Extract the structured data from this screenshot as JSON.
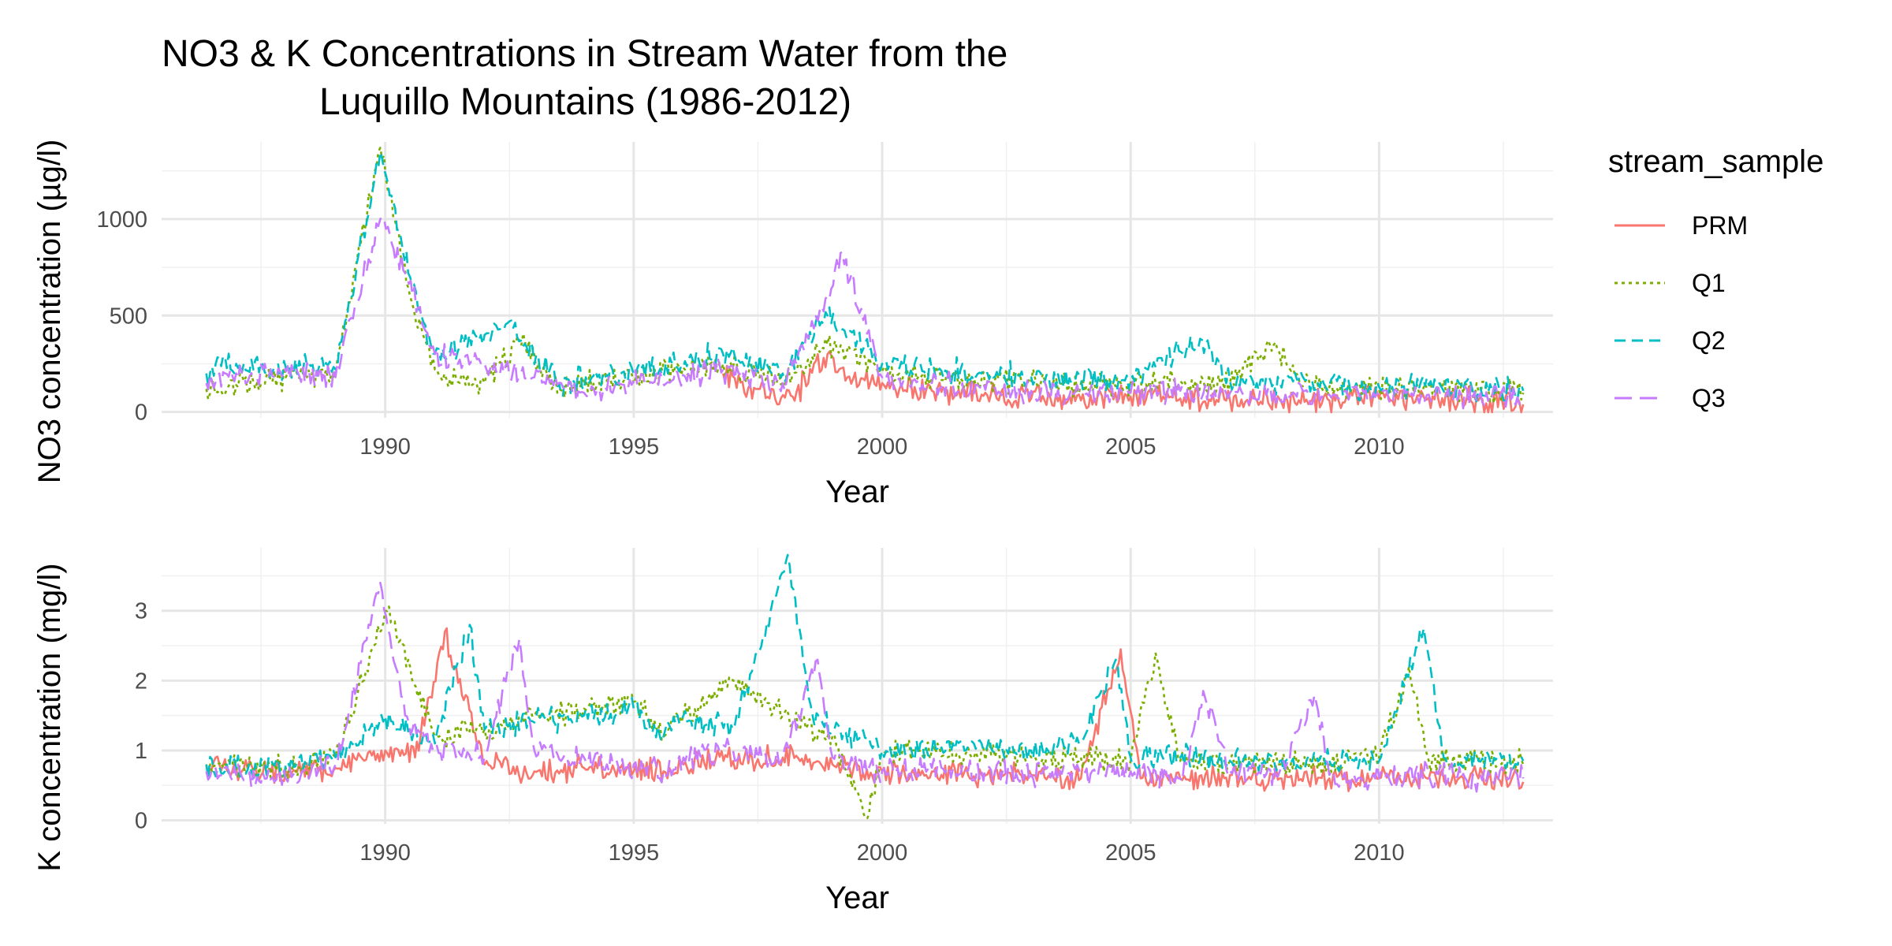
{
  "title_lines": [
    "NO3 & K Concentrations in Stream Water from the",
    "Luquillo Mountains (1986-2012)"
  ],
  "legend": {
    "title": "stream_sample",
    "placement": "right",
    "entries": [
      {
        "name": "PRM",
        "color": "#F8766D",
        "dash": "solid"
      },
      {
        "name": "Q1",
        "color": "#7CAE00",
        "dash": "dotted"
      },
      {
        "name": "Q2",
        "color": "#00BFC4",
        "dash": "dashed"
      },
      {
        "name": "Q3",
        "color": "#C77CFF",
        "dash": "longdash"
      }
    ]
  },
  "chart_data": [
    {
      "type": "line",
      "xlabel": "Year",
      "ylabel": "NO3 concentration (µg/l)",
      "xlim": [
        1985.5,
        2013.5
      ],
      "ylim": [
        -30,
        1400
      ],
      "x_ticks": [
        1990,
        1995,
        2000,
        2005,
        2010
      ],
      "y_ticks": [
        0,
        500,
        1000
      ],
      "grid": true,
      "gaps": [
        [
          1995.0,
          1996.8
        ]
      ],
      "series": [
        {
          "name": "PRM",
          "x": [
            1996.8,
            1997.5,
            1998.2,
            1998.9,
            1999.3,
            2000,
            2001,
            2002,
            2003,
            2004,
            2005,
            2006,
            2007,
            2008,
            2009,
            2010,
            2011,
            2012,
            2012.9
          ],
          "values": [
            200,
            120,
            80,
            300,
            180,
            150,
            110,
            90,
            70,
            60,
            80,
            70,
            60,
            65,
            60,
            70,
            75,
            60,
            40
          ]
        },
        {
          "name": "Q1",
          "x": [
            1986.4,
            1987,
            1988,
            1989,
            1989.9,
            1990.5,
            1991,
            1992,
            1992.7,
            1993.5,
            1996.8,
            1998,
            1998.9,
            2000,
            2001,
            2002,
            2003,
            2004,
            2005,
            2006,
            2007,
            2007.8,
            2008.5,
            2009,
            2010,
            2011,
            2012,
            2012.9
          ],
          "values": [
            120,
            140,
            180,
            200,
            1370,
            600,
            220,
            150,
            370,
            120,
            250,
            150,
            350,
            210,
            180,
            170,
            160,
            150,
            150,
            160,
            150,
            350,
            140,
            130,
            120,
            130,
            110,
            100
          ]
        },
        {
          "name": "Q2",
          "x": [
            1986.4,
            1987,
            1988,
            1989,
            1989.9,
            1990.5,
            1991,
            1992,
            1992.5,
            1993.5,
            1996.8,
            1998,
            1998.9,
            2000,
            2001,
            2002,
            2003,
            2004,
            2005,
            2006.4,
            2007,
            2008,
            2009,
            2010,
            2011,
            2012,
            2012.9
          ],
          "values": [
            200,
            250,
            230,
            220,
            1350,
            700,
            300,
            400,
            470,
            150,
            300,
            200,
            500,
            250,
            220,
            200,
            180,
            170,
            160,
            380,
            160,
            150,
            140,
            130,
            140,
            120,
            110
          ]
        },
        {
          "name": "Q3",
          "x": [
            1986.4,
            1987,
            1988,
            1989,
            1989.9,
            1990.4,
            1991,
            1992,
            1993,
            1994,
            1996.8,
            1998,
            1998.9,
            1999.2,
            2000,
            2001,
            2002,
            2003,
            2004,
            2005,
            2006,
            2007,
            2008,
            2009,
            2010,
            2011,
            2012,
            2012.9
          ],
          "values": [
            150,
            200,
            210,
            180,
            1000,
            720,
            300,
            250,
            180,
            100,
            220,
            150,
            600,
            830,
            180,
            150,
            120,
            110,
            100,
            100,
            110,
            100,
            90,
            90,
            80,
            90,
            80,
            70
          ]
        }
      ]
    },
    {
      "type": "line",
      "xlabel": "Year",
      "ylabel": "K concentration (mg/l)",
      "xlim": [
        1985.5,
        2013.5
      ],
      "ylim": [
        -0.05,
        3.9
      ],
      "x_ticks": [
        1990,
        1995,
        2000,
        2005,
        2010
      ],
      "y_ticks": [
        0,
        1,
        2,
        3
      ],
      "grid": true,
      "gaps": [
        [
          1995.6,
          1996.0
        ]
      ],
      "series": [
        {
          "name": "PRM",
          "x": [
            1986.4,
            1987,
            1988,
            1989,
            1990,
            1990.6,
            1991.2,
            1992,
            1993,
            1994,
            1995,
            1995.6,
            1996,
            1997,
            1998,
            1999,
            2000,
            2001,
            2002,
            2003,
            2004,
            2004.8,
            2005.2,
            2006,
            2007,
            2008,
            2009,
            2010,
            2011,
            2012,
            2012.9
          ],
          "values": [
            0.8,
            0.75,
            0.7,
            0.75,
            1.0,
            0.9,
            2.7,
            0.8,
            0.7,
            0.75,
            0.7,
            0.7,
            0.8,
            0.85,
            0.9,
            0.8,
            0.7,
            0.7,
            0.65,
            0.65,
            0.6,
            2.45,
            0.6,
            0.6,
            0.65,
            0.6,
            0.6,
            0.6,
            0.6,
            0.6,
            0.55
          ]
        },
        {
          "name": "Q1",
          "x": [
            1986.4,
            1987,
            1988,
            1989,
            1990,
            1990.5,
            1991,
            1992,
            1993,
            1994,
            1995,
            1995.6,
            1996,
            1997,
            1998,
            1999,
            1999.7,
            2000,
            2001,
            2002,
            2003,
            2004,
            2005,
            2005.5,
            2006,
            2007,
            2008,
            2009,
            2010,
            2010.6,
            2011,
            2012,
            2012.9
          ],
          "values": [
            0.8,
            0.8,
            0.75,
            0.9,
            3.0,
            2.2,
            1.2,
            1.3,
            1.5,
            1.6,
            1.7,
            1.2,
            1.5,
            2.0,
            1.5,
            1.2,
            0.0,
            0.95,
            1.0,
            1.0,
            0.9,
            0.9,
            0.85,
            2.4,
            0.85,
            0.85,
            0.8,
            0.8,
            0.9,
            2.2,
            0.85,
            0.85,
            0.8
          ]
        },
        {
          "name": "Q2",
          "x": [
            1986.4,
            1987,
            1988,
            1989,
            1990,
            1990.5,
            1991,
            1991.7,
            1992,
            1993,
            1994,
            1995,
            1995.6,
            1996,
            1997,
            1998.1,
            1998.6,
            1999,
            2000,
            2001,
            2002,
            2003,
            2004,
            2004.7,
            2005,
            2006,
            2007,
            2008,
            2009,
            2010,
            2010.9,
            2011.3,
            2012,
            2012.9
          ],
          "values": [
            0.8,
            0.75,
            0.8,
            0.9,
            1.5,
            1.3,
            1.1,
            2.8,
            1.3,
            1.4,
            1.5,
            1.6,
            1.2,
            1.5,
            1.3,
            3.8,
            1.5,
            1.3,
            1.0,
            1.0,
            1.1,
            1.0,
            1.1,
            2.3,
            0.9,
            0.9,
            0.85,
            0.85,
            0.85,
            0.85,
            2.75,
            0.9,
            0.85,
            0.85
          ]
        },
        {
          "name": "Q3",
          "x": [
            1986.4,
            1987,
            1988,
            1989,
            1989.9,
            1990.4,
            1991,
            1992,
            1992.7,
            1993,
            1994,
            1995,
            1995.6,
            1996,
            1997,
            1998,
            1998.7,
            1999,
            2000,
            2001,
            2002,
            2003,
            2004,
            2005,
            2006,
            2006.5,
            2007,
            2008,
            2008.7,
            2009,
            2010,
            2011,
            2012,
            2012.9
          ],
          "values": [
            0.7,
            0.65,
            0.6,
            0.8,
            3.4,
            1.5,
            1.0,
            0.9,
            2.6,
            1.0,
            0.9,
            0.8,
            0.7,
            0.9,
            1.0,
            0.9,
            2.3,
            0.9,
            0.7,
            0.75,
            0.7,
            0.65,
            0.65,
            0.7,
            0.6,
            1.75,
            0.7,
            0.7,
            1.8,
            0.65,
            0.6,
            0.65,
            0.6,
            0.6
          ]
        }
      ]
    }
  ]
}
